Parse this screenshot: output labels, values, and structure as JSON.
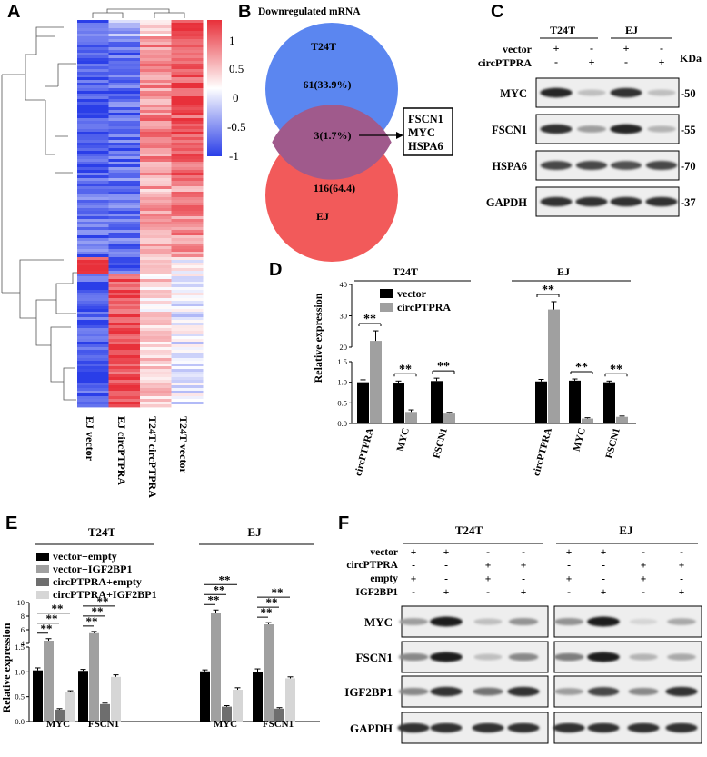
{
  "panels": {
    "A": {
      "letter": "A",
      "colorbar_ticks": [
        "1",
        "0.5",
        "0",
        "-0.5",
        "-1"
      ],
      "colorbar_colors": {
        "high": "#e8303a",
        "mid": "#ffffff",
        "low": "#2a3ee8"
      },
      "columns": [
        "EJ vector",
        "EJ circPTPRA",
        "T24T circPTPRA",
        "T24T vector"
      ]
    },
    "B": {
      "letter": "B",
      "title": "Downregulated mRNA",
      "sets": [
        {
          "name": "T24T",
          "count": "61(33.9%)",
          "color": "#5b86f0"
        },
        {
          "name": "EJ",
          "count": "116(64.4)",
          "color": "#f25a5a"
        }
      ],
      "overlap": "3(1.7%)",
      "genes": [
        "FSCN1",
        "MYC",
        "HSPA6"
      ]
    },
    "C": {
      "letter": "C",
      "groups": [
        "T24T",
        "EJ"
      ],
      "rows": [
        {
          "label": "vector",
          "signs": [
            "+",
            "-",
            "+",
            "-"
          ]
        },
        {
          "label": "circPTPRA",
          "signs": [
            "-",
            "+",
            "-",
            "+"
          ]
        }
      ],
      "kda_label": "KDa",
      "blots": [
        {
          "name": "MYC",
          "kda": "-50",
          "band_intensity": [
            0.9,
            0.2,
            0.85,
            0.2
          ]
        },
        {
          "name": "FSCN1",
          "kda": "-55",
          "band_intensity": [
            0.85,
            0.35,
            0.9,
            0.25
          ]
        },
        {
          "name": "HSPA6",
          "kda": "-70",
          "band_intensity": [
            0.75,
            0.75,
            0.7,
            0.75
          ]
        },
        {
          "name": "GAPDH",
          "kda": "-37",
          "band_intensity": [
            0.85,
            0.85,
            0.85,
            0.85
          ]
        }
      ]
    },
    "D": {
      "letter": "D",
      "groups": [
        "T24T",
        "EJ"
      ]
    },
    "E": {
      "letter": "E",
      "groups": [
        "T24T",
        "EJ"
      ]
    },
    "F": {
      "letter": "F",
      "groups": [
        "T24T",
        "EJ"
      ],
      "rows": [
        {
          "label": "vector",
          "signs": [
            "+",
            "+",
            "-",
            "-",
            "+",
            "+",
            "-",
            "-"
          ]
        },
        {
          "label": "circPTPRA",
          "signs": [
            "-",
            "-",
            "+",
            "+",
            "-",
            "-",
            "+",
            "+"
          ]
        },
        {
          "label": "empty",
          "signs": [
            "+",
            "-",
            "+",
            "-",
            "+",
            "-",
            "+",
            "-"
          ]
        },
        {
          "label": "IGF2BP1",
          "signs": [
            "-",
            "+",
            "-",
            "+",
            "-",
            "+",
            "-",
            "+"
          ]
        }
      ],
      "blots": [
        {
          "name": "MYC",
          "band_intensity": [
            0.35,
            0.95,
            0.2,
            0.4,
            0.4,
            0.95,
            0.1,
            0.3
          ]
        },
        {
          "name": "FSCN1",
          "band_intensity": [
            0.45,
            0.95,
            0.2,
            0.45,
            0.5,
            0.95,
            0.25,
            0.3
          ]
        },
        {
          "name": "IGF2BP1",
          "band_intensity": [
            0.45,
            0.85,
            0.55,
            0.85,
            0.35,
            0.75,
            0.45,
            0.85
          ]
        },
        {
          "name": "GAPDH",
          "band_intensity": [
            0.85,
            0.85,
            0.85,
            0.85,
            0.85,
            0.85,
            0.85,
            0.85
          ]
        }
      ]
    }
  },
  "chart_data": [
    {
      "panel": "D",
      "type": "bar",
      "ylabel": "Relative expression",
      "yaxis_breaks": [
        [
          0,
          1.5
        ],
        [
          20,
          40
        ]
      ],
      "yticks": [
        "0.0",
        "0.5",
        "1.0",
        "1.5",
        "20",
        "30",
        "40"
      ],
      "categories": [
        "circPTPRA",
        "MYC",
        "FSCN1",
        "circPTPRA",
        "MYC",
        "FSCN1"
      ],
      "category_groups": [
        "T24T",
        "T24T",
        "T24T",
        "EJ",
        "EJ",
        "EJ"
      ],
      "legend": "top-left",
      "significance": "**",
      "series": [
        {
          "name": "vector",
          "color": "#000000",
          "values": [
            1.0,
            0.97,
            1.03,
            1.02,
            1.04,
            1.0
          ],
          "errors": [
            0.06,
            0.06,
            0.07,
            0.05,
            0.04,
            0.03
          ]
        },
        {
          "name": "circPTPRA",
          "color": "#a0a0a0",
          "values": [
            22,
            0.28,
            0.24,
            32,
            0.12,
            0.16
          ],
          "errors": [
            3.2,
            0.05,
            0.03,
            2.5,
            0.02,
            0.02
          ]
        }
      ]
    },
    {
      "panel": "E",
      "type": "bar",
      "ylabel": "Relative expression",
      "yaxis_breaks": [
        [
          0,
          1.5
        ],
        [
          4,
          10
        ]
      ],
      "yticks": [
        "0.0",
        "0.5",
        "1.0",
        "1.5",
        "4",
        "6",
        "8",
        "10"
      ],
      "categories": [
        "MYC",
        "FSCN1",
        "MYC",
        "FSCN1"
      ],
      "category_groups": [
        "T24T",
        "T24T",
        "EJ",
        "EJ"
      ],
      "legend": "top-left",
      "significance": "**",
      "series": [
        {
          "name": "vector+empty",
          "color": "#000000",
          "values": [
            1.03,
            1.02,
            1.01,
            1.0
          ],
          "errors": [
            0.05,
            0.03,
            0.03,
            0.06
          ]
        },
        {
          "name": "vector+IGF2BP1",
          "color": "#a0a0a0",
          "values": [
            4.4,
            5.5,
            8.4,
            6.8
          ],
          "errors": [
            0.3,
            0.25,
            0.5,
            0.25
          ]
        },
        {
          "name": "circPTPRA+empty",
          "color": "#6e6e6e",
          "values": [
            0.24,
            0.35,
            0.3,
            0.26
          ],
          "errors": [
            0.02,
            0.02,
            0.02,
            0.02
          ]
        },
        {
          "name": "circPTPRA+IGF2BP1",
          "color": "#d6d6d6",
          "values": [
            0.6,
            0.9,
            0.64,
            0.87
          ],
          "errors": [
            0.02,
            0.04,
            0.04,
            0.03
          ]
        }
      ]
    }
  ]
}
